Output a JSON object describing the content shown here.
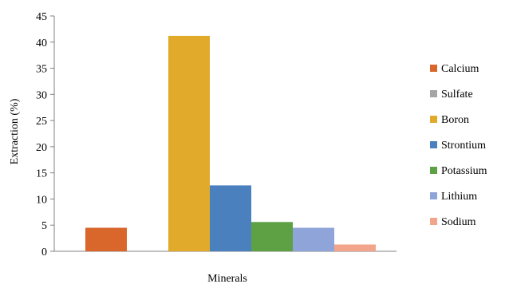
{
  "chart_data": {
    "type": "bar",
    "categories": [
      "Calcium",
      "Sulfate",
      "Boron",
      "Strontium",
      "Potassium",
      "Lithium",
      "Sodium"
    ],
    "values": [
      4.5,
      0,
      41.2,
      12.6,
      5.6,
      4.5,
      1.3
    ],
    "colors": [
      "#D9662B",
      "#A5A5A5",
      "#E1AA2A",
      "#4A80BE",
      "#5EA145",
      "#8FA4D8",
      "#F3A58B"
    ],
    "xlabel": "Minerals",
    "ylabel": "Extraction  (%)",
    "ylim": [
      0,
      45
    ],
    "yticks": [
      0,
      5,
      10,
      15,
      20,
      25,
      30,
      35,
      40,
      45
    ],
    "grid": false,
    "legend_position": "right"
  }
}
